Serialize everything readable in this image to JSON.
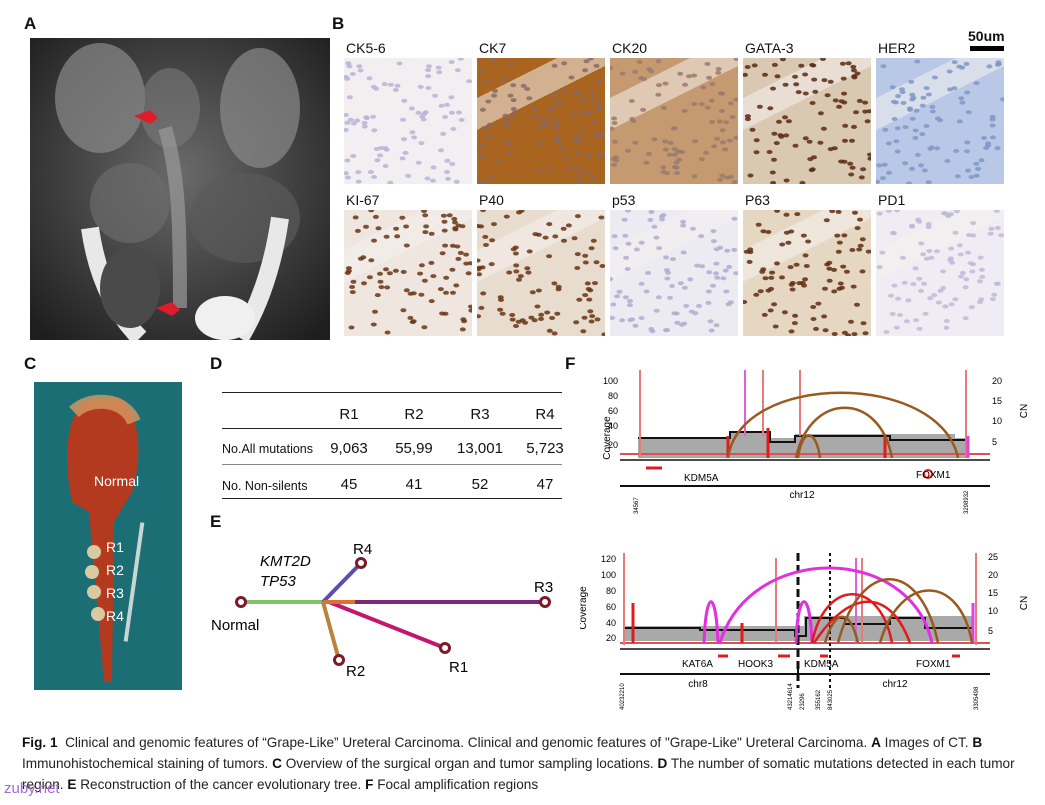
{
  "panels": {
    "a": "A",
    "b": "B",
    "c": "C",
    "d": "D",
    "e": "E",
    "f": "F"
  },
  "ihc": {
    "scale_bar": "50um",
    "stains": [
      {
        "label": "CK5-6",
        "color": "#f2eef2",
        "nuclei": "#b9b3d6"
      },
      {
        "label": "CK7",
        "color": "#a9641f",
        "nuclei": "#8a6a62"
      },
      {
        "label": "CK20",
        "color": "#c69a70",
        "nuclei": "#9a7a6e"
      },
      {
        "label": "GATA-3",
        "color": "#d9c8b2",
        "nuclei": "#5a2a10"
      },
      {
        "label": "HER2",
        "color": "#b8c8e6",
        "nuclei": "#8096c8"
      },
      {
        "label": "KI-67",
        "color": "#efe7df",
        "nuclei": "#6a3515"
      },
      {
        "label": "P40",
        "color": "#e8dccf",
        "nuclei": "#6a3211"
      },
      {
        "label": "p53",
        "color": "#ecebf2",
        "nuclei": "#b0abd0"
      },
      {
        "label": "P63",
        "color": "#e6d7c3",
        "nuclei": "#5e2c10"
      },
      {
        "label": "PD1",
        "color": "#efedf3",
        "nuclei": "#beb9d8"
      }
    ]
  },
  "specimen": {
    "normal_label": "Normal",
    "regions": [
      "R1",
      "R2",
      "R3",
      "R4"
    ]
  },
  "mutation_table": {
    "columns": [
      "R1",
      "R2",
      "R3",
      "R4"
    ],
    "rows": [
      {
        "label": "No.All mutations",
        "values": [
          "9,063",
          "55,99",
          "13,001",
          "5,723"
        ]
      },
      {
        "label": "No. Non-silents",
        "values": [
          "45",
          "41",
          "52",
          "47"
        ]
      }
    ]
  },
  "tree": {
    "genes_line1": "KMT2D",
    "genes_line2": "TP53",
    "root": "Normal",
    "leaves": [
      "R4",
      "R3",
      "R2",
      "R1"
    ],
    "colors": {
      "trunk": "#7fc46b",
      "r4": "#5a4fb0",
      "r3": "#7a2a7a",
      "r2": "#b8833f",
      "r1": "#c2176a",
      "node": "#e07030"
    }
  },
  "amplification": {
    "top": {
      "left_axis_title": "Coverage",
      "right_axis_title": "CN",
      "left_ticks": [
        "100",
        "80",
        "60",
        "40",
        "20"
      ],
      "right_ticks": [
        "20",
        "15",
        "10",
        "5"
      ],
      "genes": [
        "KDM5A",
        "FOXM1"
      ],
      "chromosome": "chr12",
      "start_pos": "34567",
      "end_pos": "3298932"
    },
    "bottom": {
      "left_axis_title": "Coverage",
      "right_axis_title": "CN",
      "left_ticks": [
        "120",
        "100",
        "80",
        "60",
        "40",
        "20"
      ],
      "right_ticks": [
        "25",
        "20",
        "15",
        "10",
        "5"
      ],
      "genes": [
        "KAT6A",
        "HOOK3",
        "KDM5A",
        "FOXM1"
      ],
      "chromosomes": [
        "chr8",
        "chr12"
      ],
      "positions": [
        "40232210",
        "43214614",
        "23296",
        "355162",
        "843025",
        "3305498"
      ]
    },
    "colors": {
      "arc_brown": "#9a5a1f",
      "arc_magenta": "#e030e0",
      "arc_red": "#e01b1b",
      "threshold": "#e05050",
      "coverage": "#a9a9a9"
    }
  },
  "caption": {
    "fig_label": "Fig. 1",
    "intro": "Clinical and genomic features of “Grape-Like” Ureteral Carcinoma. Clinical and genomic features of \"Grape-Like\" Ureteral Carcinoma.",
    "a_text": "Images of CT.",
    "b_text": "Immunohistochemical staining of tumors.",
    "c_text": "Overview of the surgical organ and tumor sampling locations.",
    "d_text": "The number of somatic mutations detected in each tumor region.",
    "e_text": "Reconstruction of the cancer evolutionary tree.",
    "f_text": "Focal amplification regions"
  },
  "watermark": "zuby.net"
}
